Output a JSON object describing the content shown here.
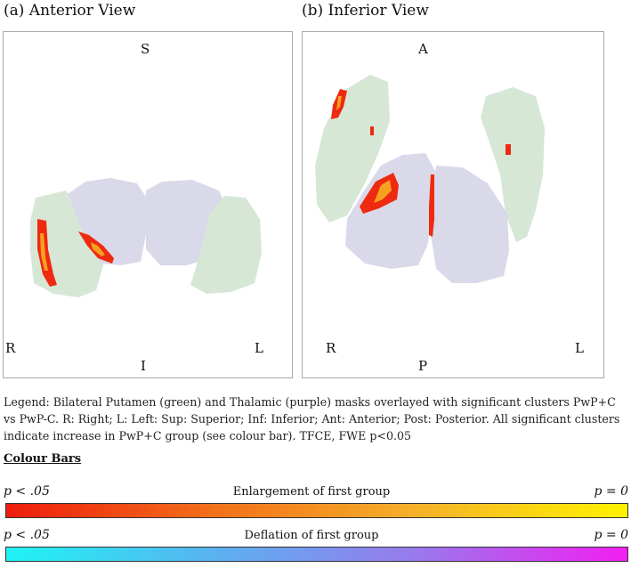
{
  "panels": {
    "anterior": {
      "title": "(a) Anterior View",
      "labels": {
        "top": "S",
        "bottom": "I",
        "left": "R",
        "right": "L"
      }
    },
    "inferior": {
      "title": "(b) Inferior View",
      "labels": {
        "top": "A",
        "bottom": "P",
        "left": "R",
        "right": "L"
      }
    }
  },
  "legend": {
    "text": "Legend: Bilateral Putamen (green) and Thalamic (purple) masks overlayed with significant clusters PwP+C vs PwP-C. R: Right; L: Left: Sup: Superior; Inf: Inferior; Ant: Anterior; Post: Posterior. All significant clusters indicate increase in PwP+C group (see colour bar). TFCE, FWE p<0.05"
  },
  "colour_bars": {
    "heading": "Colour Bars",
    "bars": [
      {
        "left_label": "p < .05",
        "title": "Enlargement of first group",
        "right_label": "p = 0",
        "colors": [
          "#ee1c0e",
          "#f2701a",
          "#f5b22a",
          "#fff200"
        ]
      },
      {
        "left_label": "p < .05",
        "title": "Deflation of first group",
        "right_label": "p = 0",
        "colors": [
          "#1ef4f4",
          "#5ab2f0",
          "#9a78ec",
          "#f21ef2"
        ]
      }
    ]
  },
  "colors": {
    "putamen": "#d6e7d6",
    "thalamus": "#d9d9e9",
    "cluster": "#ee2a10",
    "cluster_hot": "#f7a020"
  }
}
